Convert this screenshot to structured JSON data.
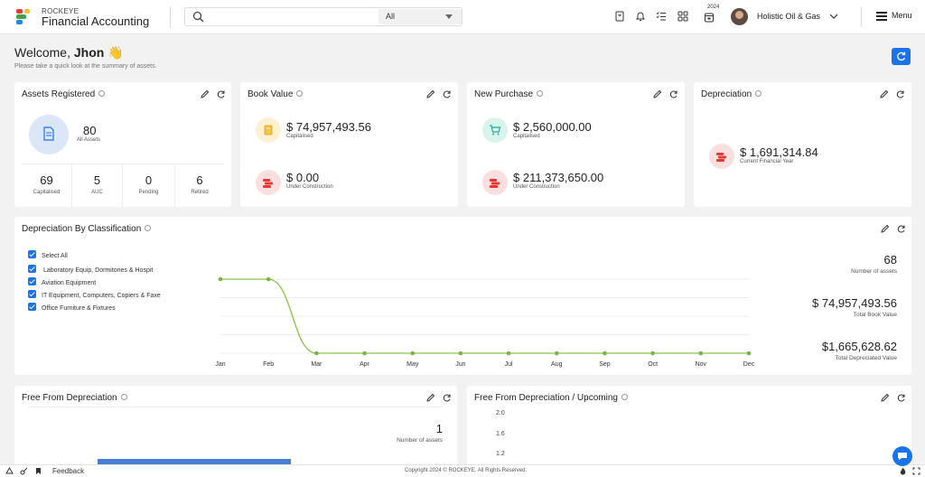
{
  "header": {
    "brand_top": "ROCKEYE",
    "brand_name": "Financial Accounting",
    "search_placeholder": "",
    "search_scope": "All",
    "year_badge": "2024",
    "company": "Holistic Oil & Gas",
    "menu_label": "Menu",
    "icons": [
      "bookmark-icon",
      "bell-icon",
      "checklist-icon",
      "apps-grid-icon",
      "calendar-icon",
      "chevron-down-icon",
      "hamburger-icon"
    ]
  },
  "welcome": {
    "greeting": "Welcome, ",
    "name": "Jhon",
    "emoji": "👋",
    "subtitle": "Please take a quick look at the summary of assets."
  },
  "assets_registered": {
    "title": "Assets Registered",
    "total": "80",
    "total_label": "All Assets",
    "stats": [
      {
        "value": "69",
        "label": "Capitalised"
      },
      {
        "value": "5",
        "label": "AUC"
      },
      {
        "value": "0",
        "label": "Pending"
      },
      {
        "value": "6",
        "label": "Retired"
      }
    ]
  },
  "book_value": {
    "title": "Book Value",
    "items": [
      {
        "value": "$ 74,957,493.56",
        "label": "Capitalised"
      },
      {
        "value": "$ 0.00",
        "label": "Under Construction"
      }
    ]
  },
  "new_purchase": {
    "title": "New Purchase",
    "items": [
      {
        "value": "$ 2,560,000.00",
        "label": "Capitalised"
      },
      {
        "value": "$ 211,373,650.00",
        "label": "Under Construction"
      }
    ]
  },
  "depreciation": {
    "title": "Depreciation",
    "value": "$ 1,691,314.84",
    "label": "Current Financial Year"
  },
  "dep_by_class": {
    "title": "Depreciation By Classification",
    "legend": [
      "Select All",
      " Laboratory Equip, Dormitories & Hospit",
      "Aviation Equipment",
      "IT Equipment, Computers, Copiers & Faxe",
      "Office Furniture & Fixtures"
    ],
    "stats": [
      {
        "value": "68",
        "label": "Number of assets"
      },
      {
        "value": "$ 74,957,493.56",
        "label": "Total Book Value"
      },
      {
        "value": "$1,665,628.62",
        "label": "Total Depreciated Value"
      }
    ]
  },
  "chart_data": {
    "type": "line",
    "categories": [
      "Jan",
      "Feb",
      "Mar",
      "Apr",
      "May",
      "Jun",
      "Jul",
      "Aug",
      "Sep",
      "Oct",
      "Nov",
      "Dec"
    ],
    "values": [
      1,
      1,
      0,
      0,
      0,
      0,
      0,
      0,
      0,
      0,
      0,
      0
    ],
    "grid": true,
    "y_axis_labels_shown": false,
    "color": "#8bc34a"
  },
  "free_from_dep": {
    "title": "Free From Depreciation",
    "value": "1",
    "label": "Number of assets"
  },
  "free_from_dep_upcoming": {
    "title": "Free From Depreciation / Upcoming",
    "y_ticks": [
      "2.0",
      "1.6",
      "1.2"
    ]
  },
  "footer": {
    "feedback": "Feedback",
    "copyright": "Copyright 2024 © ROCKEYE. All Rights Reserved."
  },
  "colors": {
    "accent": "#1a73e8",
    "line": "#8bc34a",
    "asset_circle": "#dbe6f6",
    "book_circle": "#fdf1d2",
    "purchase_circle": "#d9f4ea",
    "red_circle": "#fbdede"
  }
}
